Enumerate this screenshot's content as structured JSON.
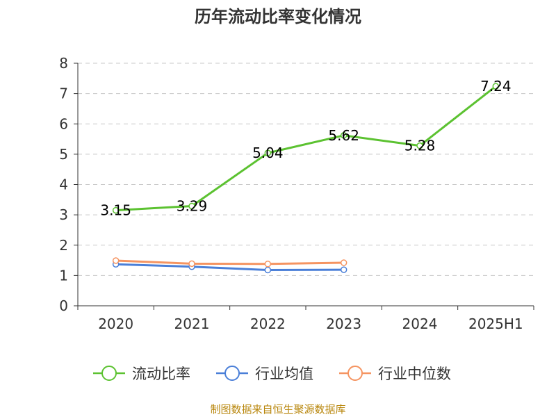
{
  "footer": "制图数据来自恒生聚源数据库",
  "chart_data": {
    "type": "line",
    "title": "历年流动比率变化情况",
    "xlabel": "",
    "ylabel": "",
    "categories": [
      "2020",
      "2021",
      "2022",
      "2023",
      "2024",
      "2025H1"
    ],
    "ylim": [
      0,
      8
    ],
    "yticks": [
      0,
      1,
      2,
      3,
      4,
      5,
      6,
      7,
      8
    ],
    "grid": true,
    "legend_position": "bottom",
    "series": [
      {
        "name": "流动比率",
        "color": "#5cc231",
        "values": [
          3.15,
          3.29,
          5.04,
          5.62,
          5.28,
          7.24
        ],
        "labels": [
          "3.15",
          "3.29",
          "5.04",
          "5.62",
          "5.28",
          "7.24"
        ]
      },
      {
        "name": "行业均值",
        "color": "#4a7fd8",
        "values": [
          1.37,
          1.29,
          1.18,
          1.19,
          null,
          null
        ]
      },
      {
        "name": "行业中位数",
        "color": "#f59461",
        "values": [
          1.49,
          1.39,
          1.38,
          1.42,
          null,
          null
        ]
      }
    ]
  }
}
